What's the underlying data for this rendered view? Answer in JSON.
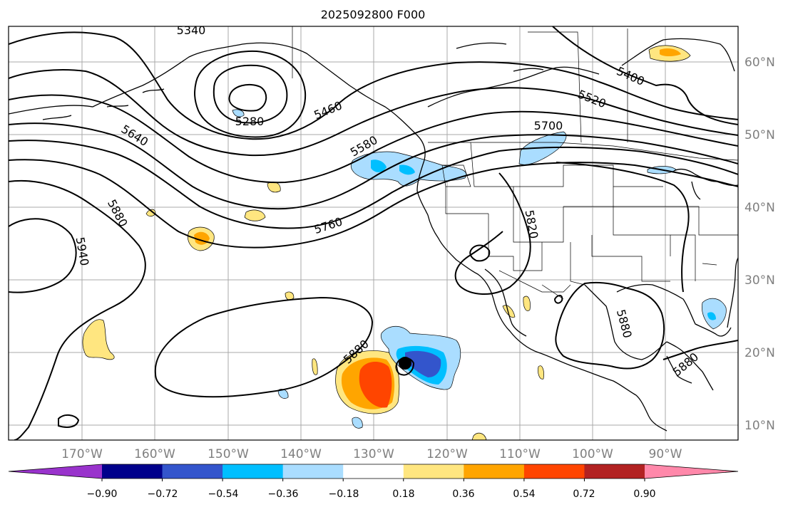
{
  "title": "2025092800 F000",
  "latitude_labels": [
    "60°N",
    "50°N",
    "40°N",
    "30°N",
    "20°N",
    "10°N"
  ],
  "longitude_labels": [
    "170°W",
    "160°W",
    "150°W",
    "140°W",
    "130°W",
    "120°W",
    "110°W",
    "100°W",
    "90°W"
  ],
  "contour_labels": [
    "5340",
    "5280",
    "5460",
    "5400",
    "5520",
    "5700",
    "5640",
    "5580",
    "5880",
    "5940",
    "5760",
    "5820",
    "5880",
    "5880",
    "5880"
  ],
  "colorbar": {
    "tick_labels": [
      "−0.90",
      "−0.72",
      "−0.54",
      "−0.36",
      "−0.18",
      "0.18",
      "0.36",
      "0.54",
      "0.72",
      "0.90"
    ],
    "colors": [
      "#9933cc",
      "#00008b",
      "#3355cc",
      "#00bfff",
      "#aaddff",
      "#ffffff",
      "#ffe680",
      "#ffa500",
      "#ff4500",
      "#b22222",
      "#ff88aa"
    ]
  }
}
